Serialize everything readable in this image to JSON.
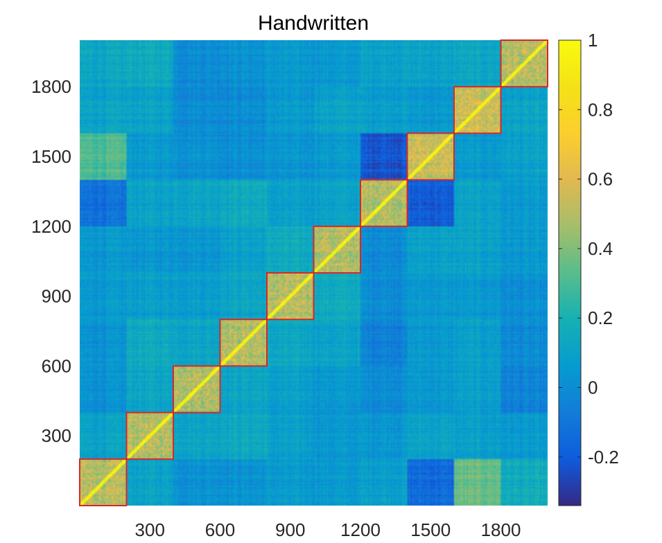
{
  "chart_data": {
    "type": "heatmap",
    "title": "Handwritten",
    "xlabel": "",
    "ylabel": "",
    "xlim": [
      0,
      2000
    ],
    "ylim": [
      0,
      2000
    ],
    "y_direction": "normal",
    "block_size": 200,
    "n_blocks": 10,
    "colormap": "parula",
    "x_ticks": [
      300,
      600,
      900,
      1200,
      1500,
      1800
    ],
    "x_tick_labels": [
      "300",
      "600",
      "900",
      "1200",
      "1500",
      "1800"
    ],
    "y_ticks": [
      300,
      600,
      900,
      1200,
      1500,
      1800
    ],
    "y_tick_labels": [
      "300",
      "600",
      "900",
      "1200",
      "1500",
      "1800"
    ],
    "colorbar": {
      "min": -0.34,
      "max": 1,
      "ticks": [
        -0.2,
        0,
        0.2,
        0.4,
        0.6,
        0.8,
        1
      ],
      "tick_labels": [
        "-0.2",
        "0",
        "0.2",
        "0.4",
        "0.6",
        "0.8",
        "1"
      ]
    },
    "block_mean_matrix": [
      [
        0.5,
        0.1,
        0.02,
        0.02,
        0.05,
        0.05,
        0.08,
        -0.15,
        0.35,
        0.15
      ],
      [
        0.1,
        0.5,
        0.12,
        0.14,
        0.08,
        0.05,
        0.05,
        0.1,
        0.08,
        0.05
      ],
      [
        0.02,
        0.12,
        0.5,
        0.12,
        0.08,
        0.05,
        0.0,
        0.05,
        0.08,
        -0.05
      ],
      [
        0.02,
        0.14,
        0.12,
        0.5,
        0.12,
        0.1,
        -0.05,
        0.05,
        0.08,
        -0.02
      ],
      [
        0.05,
        0.08,
        0.08,
        0.12,
        0.5,
        0.15,
        0.0,
        0.05,
        0.05,
        0.0
      ],
      [
        0.05,
        0.05,
        0.05,
        0.1,
        0.15,
        0.5,
        0.0,
        0.1,
        0.1,
        0.05
      ],
      [
        -0.12,
        0.1,
        0.12,
        0.15,
        0.08,
        0.1,
        0.5,
        -0.2,
        0.1,
        0.05
      ],
      [
        0.3,
        0.05,
        0.02,
        0.0,
        0.02,
        0.05,
        -0.22,
        0.55,
        0.05,
        0.08
      ],
      [
        0.1,
        0.1,
        0.0,
        0.0,
        0.05,
        0.1,
        0.08,
        0.05,
        0.55,
        0.1
      ],
      [
        0.12,
        0.15,
        0.0,
        0.02,
        0.05,
        0.05,
        0.1,
        0.1,
        0.12,
        0.5
      ]
    ],
    "highlighted_blocks": "diagonal",
    "highlight_color": "#d7262c"
  }
}
